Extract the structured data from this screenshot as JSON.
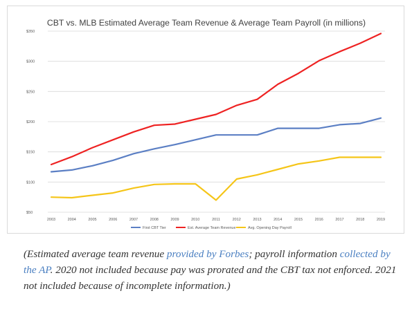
{
  "chart_data": {
    "type": "line",
    "title": "CBT vs. MLB Estimated Average Team Revenue & Average Team Payroll (in millions)",
    "xlabel": "",
    "ylabel": "",
    "categories": [
      "2003",
      "2004",
      "2005",
      "2006",
      "2007",
      "2008",
      "2009",
      "2010",
      "2011",
      "2012",
      "2013",
      "2014",
      "2015",
      "2016",
      "2017",
      "2018",
      "2019"
    ],
    "yticks": [
      "$50",
      "$100",
      "$150",
      "$200",
      "$250",
      "$300",
      "$350"
    ],
    "ylim": [
      50,
      350
    ],
    "grid": true,
    "legend_position": "bottom",
    "series": [
      {
        "name": "First CBT Tier",
        "color": "#5b7fc4",
        "values": [
          117,
          120,
          127,
          136,
          147,
          155,
          162,
          170,
          178,
          178,
          178,
          189,
          189,
          189,
          195,
          197,
          206
        ]
      },
      {
        "name": "Est. Average Team Revenue",
        "color": "#ee2222",
        "values": [
          129,
          142,
          157,
          170,
          183,
          194,
          196,
          204,
          212,
          227,
          237,
          262,
          280,
          301,
          316,
          330,
          346
        ]
      },
      {
        "name": "Avg. Opening Day Payroll",
        "color": "#f5c518",
        "values": [
          75,
          74,
          78,
          82,
          90,
          96,
          97,
          97,
          70,
          105,
          112,
          121,
          130,
          135,
          141,
          141,
          141
        ]
      }
    ]
  },
  "caption": {
    "part1": "(Estimated average team revenue ",
    "link1": "provided by Forbes",
    "part2": "; payroll information ",
    "link2": "collected by the AP",
    "part3": ". 2020 not included because pay was prorated and the CBT tax not enforced. 2021 not included because of incomplete information.)"
  }
}
